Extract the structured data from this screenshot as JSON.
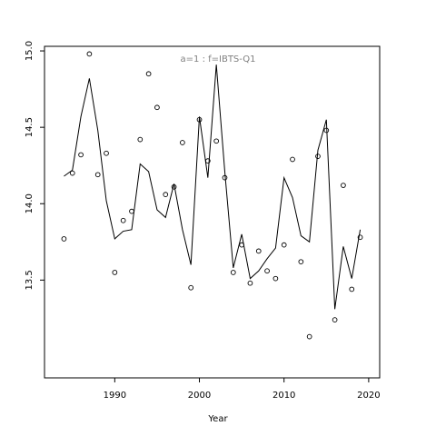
{
  "chart_data": {
    "type": "scatter",
    "title": "a=1  :  f=IBTS-Q1",
    "xlabel": "Year",
    "ylabel": "",
    "xlim": [
      1981.7,
      2021.3
    ],
    "ylim": [
      12.86,
      15.03
    ],
    "x_ticks": [
      1990,
      2000,
      2010,
      2020
    ],
    "x_tick_labels": [
      "1990",
      "2000",
      "2010",
      "2020"
    ],
    "y_ticks": [
      13.5,
      14.0,
      14.5,
      15.0
    ],
    "y_tick_labels": [
      "13.5",
      "14.0",
      "14.5",
      "15.0"
    ],
    "grid": false,
    "colors": {
      "title": "#808080",
      "axis": "#000000",
      "points": "#000000",
      "line": "#000000"
    },
    "series": [
      {
        "kind": "points",
        "x": [
          1984,
          1985,
          1986,
          1987,
          1988,
          1989,
          1990,
          1991,
          1992,
          1993,
          1994,
          1995,
          1996,
          1997,
          1998,
          1999,
          2000,
          2001,
          2002,
          2003,
          2004,
          2005,
          2006,
          2007,
          2008,
          2009,
          2010,
          2011,
          2012,
          2013,
          2014,
          2015,
          2016,
          2017,
          2018,
          2019
        ],
        "y": [
          13.77,
          14.2,
          14.32,
          14.98,
          14.19,
          14.33,
          13.55,
          13.89,
          13.95,
          14.42,
          14.85,
          14.63,
          14.06,
          14.11,
          14.4,
          13.45,
          14.55,
          14.28,
          14.41,
          14.17,
          13.55,
          13.73,
          13.48,
          13.69,
          13.56,
          13.51,
          13.73,
          14.29,
          13.62,
          13.13,
          14.31,
          14.48,
          13.24,
          14.12,
          13.44,
          13.78
        ]
      },
      {
        "kind": "line",
        "x": [
          1984,
          1985,
          1986,
          1987,
          1988,
          1989,
          1990,
          1991,
          1992,
          1993,
          1994,
          1995,
          1996,
          1997,
          1998,
          1999,
          2000,
          2001,
          2002,
          2003,
          2004,
          2005,
          2006,
          2007,
          2008,
          2009,
          2010,
          2011,
          2012,
          2013,
          2014,
          2015,
          2016,
          2017,
          2018,
          2019
        ],
        "y": [
          14.18,
          14.22,
          14.57,
          14.82,
          14.48,
          14.02,
          13.77,
          13.82,
          13.83,
          14.26,
          14.21,
          13.96,
          13.91,
          14.13,
          13.83,
          13.6,
          14.57,
          14.17,
          14.91,
          14.21,
          13.58,
          13.8,
          13.51,
          13.56,
          13.64,
          13.71,
          14.17,
          14.04,
          13.79,
          13.75,
          14.35,
          14.55,
          13.31,
          13.72,
          13.51,
          13.83
        ]
      }
    ]
  }
}
